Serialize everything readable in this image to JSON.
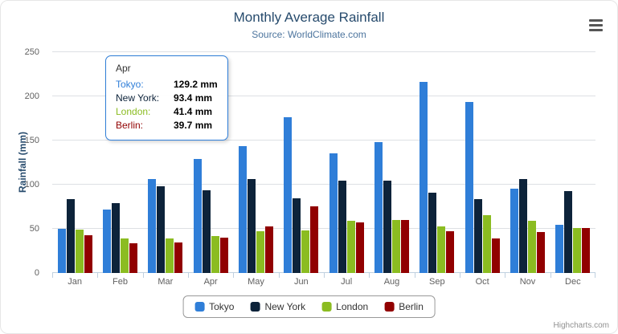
{
  "title": "Monthly Average Rainfall",
  "subtitle": "Source: WorldClimate.com",
  "y_axis": {
    "title": "Rainfall (mm)"
  },
  "credits": "Highcharts.com",
  "chart_data": {
    "type": "bar",
    "title": "Monthly Average Rainfall",
    "subtitle": "Source: WorldClimate.com",
    "xlabel": "",
    "ylabel": "Rainfall (mm)",
    "ylim": [
      0,
      250
    ],
    "y_ticks": [
      0,
      50,
      100,
      150,
      200,
      250
    ],
    "grid": true,
    "legend_position": "bottom",
    "categories": [
      "Jan",
      "Feb",
      "Mar",
      "Apr",
      "May",
      "Jun",
      "Jul",
      "Aug",
      "Sep",
      "Oct",
      "Nov",
      "Dec"
    ],
    "series": [
      {
        "name": "Tokyo",
        "color": "#2f7ed8",
        "values": [
          49.9,
          71.5,
          106.4,
          129.2,
          144.0,
          176.0,
          135.6,
          148.5,
          216.4,
          194.1,
          95.6,
          54.4
        ]
      },
      {
        "name": "New York",
        "color": "#0d233a",
        "values": [
          83.6,
          78.8,
          98.5,
          93.4,
          106.0,
          84.5,
          105.0,
          104.3,
          91.2,
          83.5,
          106.6,
          92.3
        ]
      },
      {
        "name": "London",
        "color": "#8bbc21",
        "values": [
          48.9,
          38.8,
          39.3,
          41.4,
          47.0,
          48.3,
          59.0,
          59.6,
          52.4,
          65.2,
          59.3,
          51.2
        ]
      },
      {
        "name": "Berlin",
        "color": "#910000",
        "values": [
          42.4,
          33.2,
          34.5,
          39.7,
          52.6,
          75.5,
          57.4,
          60.4,
          47.6,
          39.1,
          46.8,
          51.1
        ]
      }
    ]
  },
  "tooltip": {
    "header": "Apr",
    "rows": [
      {
        "label": "Tokyo:",
        "value": "129.2 mm"
      },
      {
        "label": "New York:",
        "value": "93.4 mm"
      },
      {
        "label": "London:",
        "value": "41.4 mm"
      },
      {
        "label": "Berlin:",
        "value": "39.7 mm"
      }
    ]
  },
  "legend": {
    "items": [
      "Tokyo",
      "New York",
      "London",
      "Berlin"
    ]
  }
}
